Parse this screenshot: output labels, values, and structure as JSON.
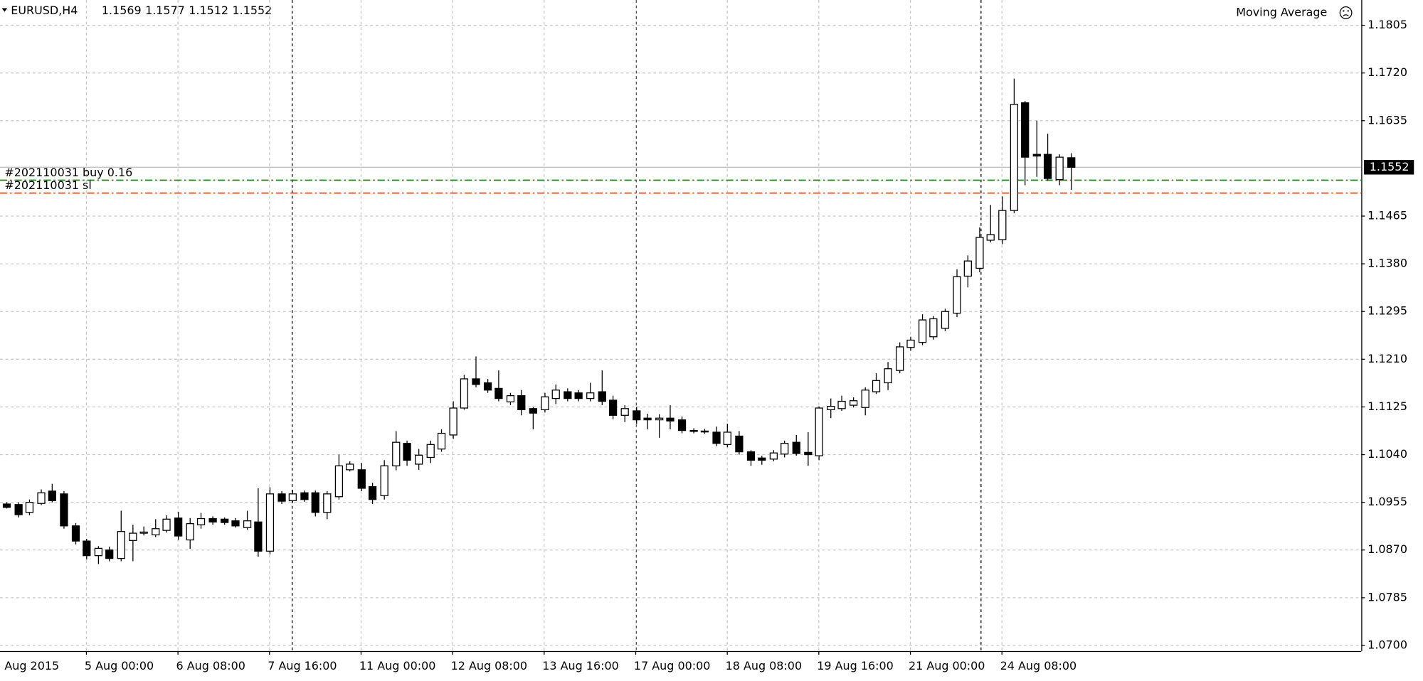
{
  "chart_data": {
    "type": "candlestick",
    "symbol": "EURUSD,H4",
    "header_quotes": [
      1.1569,
      1.1577,
      1.1512,
      1.1552
    ],
    "indicator": "Moving Average",
    "x_start_label": "Aug 2015",
    "open": [
      1.0952,
      1.0951,
      1.0937,
      1.0953,
      1.0975,
      1.097,
      1.0913,
      1.0886,
      1.086,
      1.087,
      1.0855,
      1.0887,
      1.09,
      1.0897,
      1.0905,
      1.0927,
      1.0888,
      1.0915,
      1.0926,
      1.0925,
      1.0922,
      1.091,
      1.092,
      1.0868,
      1.097,
      1.0958,
      1.0972,
      1.0972,
      1.0937,
      1.0965,
      1.1013,
      1.1013,
      1.0983,
      1.0967,
      1.102,
      1.106,
      1.1023,
      1.1035,
      1.105,
      1.1075,
      1.1123,
      1.1175,
      1.1168,
      1.1158,
      1.1134,
      1.1145,
      1.1122,
      1.112,
      1.114,
      1.1152,
      1.115,
      1.114,
      1.1152,
      1.1137,
      1.111,
      1.1118,
      1.1105,
      1.1102,
      1.1105,
      1.1102,
      1.1083,
      1.1082,
      1.108,
      1.1058,
      1.1073,
      1.1045,
      1.1034,
      1.1032,
      1.1041,
      1.1062,
      1.1044,
      1.1038,
      1.112,
      1.1122,
      1.1128,
      1.1124,
      1.1152,
      1.1168,
      1.119,
      1.1231,
      1.124,
      1.125,
      1.1265,
      1.1292,
      1.1358,
      1.1372,
      1.1422,
      1.1423,
      1.1475,
      1.1667,
      1.1575,
      1.1575,
      1.153,
      1.1569
    ],
    "high": [
      1.0955,
      1.0955,
      1.096,
      1.0978,
      1.0988,
      1.0975,
      1.0918,
      1.089,
      1.0877,
      1.0876,
      1.094,
      1.0915,
      1.0912,
      1.0925,
      1.0932,
      1.0938,
      1.0927,
      1.0936,
      1.093,
      1.0928,
      1.0927,
      1.094,
      1.098,
      1.0982,
      1.0975,
      1.0977,
      1.0976,
      1.0976,
      1.0975,
      1.104,
      1.1028,
      1.1025,
      1.099,
      1.103,
      1.1082,
      1.1065,
      1.105,
      1.1065,
      1.1085,
      1.1135,
      1.1182,
      1.1215,
      1.1175,
      1.119,
      1.115,
      1.1155,
      1.1125,
      1.115,
      1.1165,
      1.1158,
      1.1155,
      1.1168,
      1.119,
      1.1145,
      1.1128,
      1.1125,
      1.1113,
      1.1112,
      1.1128,
      1.1108,
      1.1087,
      1.1086,
      1.109,
      1.1095,
      1.1082,
      1.1048,
      1.1038,
      1.1048,
      1.1065,
      1.1075,
      1.108,
      1.1126,
      1.114,
      1.1145,
      1.1142,
      1.116,
      1.1185,
      1.1205,
      1.124,
      1.125,
      1.129,
      1.1287,
      1.13,
      1.137,
      1.1395,
      1.1445,
      1.1485,
      1.15,
      1.171,
      1.167,
      1.1635,
      1.1612,
      1.1575,
      1.1577
    ],
    "low": [
      1.0944,
      1.0928,
      1.0932,
      1.095,
      1.0955,
      1.0908,
      1.088,
      1.0853,
      1.0845,
      1.085,
      1.085,
      1.085,
      1.0896,
      1.0893,
      1.0901,
      1.0888,
      1.0872,
      1.0908,
      1.0915,
      1.0915,
      1.091,
      1.0906,
      1.0858,
      1.0862,
      1.0952,
      1.0955,
      1.0956,
      1.093,
      1.0925,
      1.096,
      1.101,
      1.0975,
      1.0952,
      1.096,
      1.1012,
      1.102,
      1.1013,
      1.1025,
      1.1045,
      1.1068,
      1.112,
      1.116,
      1.115,
      1.1135,
      1.1128,
      1.111,
      1.1085,
      1.1115,
      1.113,
      1.1135,
      1.1135,
      1.1135,
      1.1128,
      1.1103,
      1.1098,
      1.1095,
      1.1085,
      1.107,
      1.1085,
      1.1078,
      1.1078,
      1.1077,
      1.1055,
      1.1053,
      1.104,
      1.102,
      1.1022,
      1.1028,
      1.1035,
      1.1038,
      1.102,
      1.103,
      1.1105,
      1.1118,
      1.1124,
      1.111,
      1.1148,
      1.1155,
      1.1185,
      1.1225,
      1.1235,
      1.1245,
      1.126,
      1.1285,
      1.1338,
      1.1365,
      1.1418,
      1.1415,
      1.147,
      1.152,
      1.1535,
      1.1528,
      1.152,
      1.1512
    ],
    "close": [
      1.0946,
      1.0933,
      1.0955,
      1.0972,
      1.0958,
      1.0913,
      1.0886,
      1.086,
      1.0873,
      1.0855,
      1.0903,
      1.09,
      1.0902,
      1.0908,
      1.0925,
      1.0895,
      1.0917,
      1.0926,
      1.092,
      1.0919,
      1.0913,
      1.0922,
      1.0868,
      1.097,
      1.0957,
      1.097,
      1.096,
      1.0937,
      1.097,
      1.102,
      1.1023,
      1.098,
      1.096,
      1.102,
      1.1062,
      1.103,
      1.1039,
      1.1058,
      1.1078,
      1.1123,
      1.1175,
      1.1165,
      1.1155,
      1.114,
      1.1145,
      1.112,
      1.1114,
      1.1143,
      1.1155,
      1.114,
      1.114,
      1.115,
      1.1135,
      1.111,
      1.1122,
      1.1102,
      1.1102,
      1.1105,
      1.11,
      1.1083,
      1.1082,
      1.1081,
      1.106,
      1.108,
      1.1045,
      1.103,
      1.103,
      1.1043,
      1.106,
      1.1042,
      1.104,
      1.1123,
      1.1126,
      1.1135,
      1.1136,
      1.1155,
      1.1172,
      1.1193,
      1.1232,
      1.1244,
      1.128,
      1.1282,
      1.1295,
      1.1357,
      1.1385,
      1.1427,
      1.1432,
      1.1475,
      1.1664,
      1.157,
      1.1572,
      1.1532,
      1.157,
      1.1552
    ],
    "xlim": [
      -0.55,
      118.4
    ],
    "xticks": [
      {
        "value": 7,
        "label": "5 Aug 00:00"
      },
      {
        "value": 15,
        "label": "6 Aug 08:00"
      },
      {
        "value": 23,
        "label": "7 Aug 16:00"
      },
      {
        "value": 31,
        "label": "11 Aug 00:00"
      },
      {
        "value": 39,
        "label": "12 Aug 08:00"
      },
      {
        "value": 47,
        "label": "13 Aug 16:00"
      },
      {
        "value": 55,
        "label": "17 Aug 00:00"
      },
      {
        "value": 63,
        "label": "18 Aug 08:00"
      },
      {
        "value": 71,
        "label": "19 Aug 16:00"
      },
      {
        "value": 79,
        "label": "21 Aug 00:00"
      },
      {
        "value": 87,
        "label": "24 Aug 08:00"
      }
    ],
    "ylim": [
      1.069,
      1.185
    ],
    "yticks": [
      1.1805,
      {
        "value": 1.172,
        "label": "1.1720"
      },
      1.1635,
      1.1465,
      {
        "value": 1.138,
        "label": "1.1380"
      },
      1.1295,
      {
        "value": 1.121,
        "label": "1.1210"
      },
      1.1125,
      {
        "value": 1.104,
        "label": "1.1040"
      },
      1.0955,
      {
        "value": 1.087,
        "label": "1.0870"
      },
      1.0785,
      {
        "value": 1.07,
        "label": "1.0700"
      }
    ],
    "grid": true,
    "bid": 1.1552,
    "orders": [
      {
        "label": "#202110031 buy 0.16",
        "price": 1.1529,
        "color": "#008000"
      },
      {
        "label": "#202110031 sl",
        "price": 1.1506,
        "color": "#ff4500"
      }
    ]
  }
}
